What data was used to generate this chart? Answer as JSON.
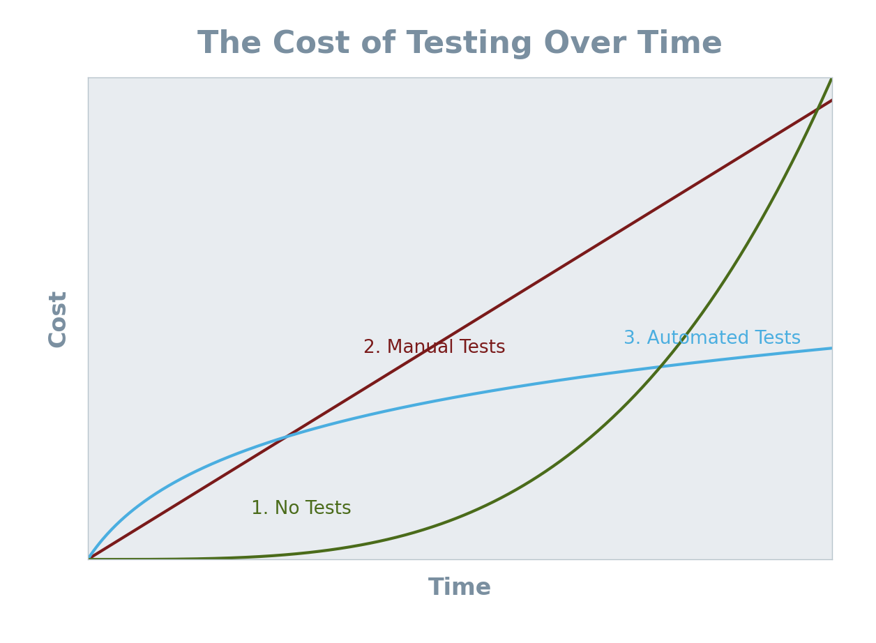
{
  "title": "The Cost of Testing Over Time",
  "xlabel": "Time",
  "ylabel": "Cost",
  "title_color": "#7a8fa0",
  "axis_label_color": "#7a8fa0",
  "background_color": "#ffffff",
  "plot_bg_color": "#e8ecf0",
  "manual_tests_color": "#7a1a1a",
  "automated_tests_color": "#4aaee0",
  "no_tests_color": "#4a6b1a",
  "label_manual": "2. Manual Tests",
  "label_automated": "3. Automated Tests",
  "label_no_tests": "1. No Tests",
  "label_manual_color": "#7a1a1a",
  "label_automated_color": "#4aaee0",
  "label_no_tests_color": "#4a6b1a",
  "line_width": 3.0,
  "title_fontsize": 32,
  "axis_label_fontsize": 24,
  "annotation_fontsize": 19
}
